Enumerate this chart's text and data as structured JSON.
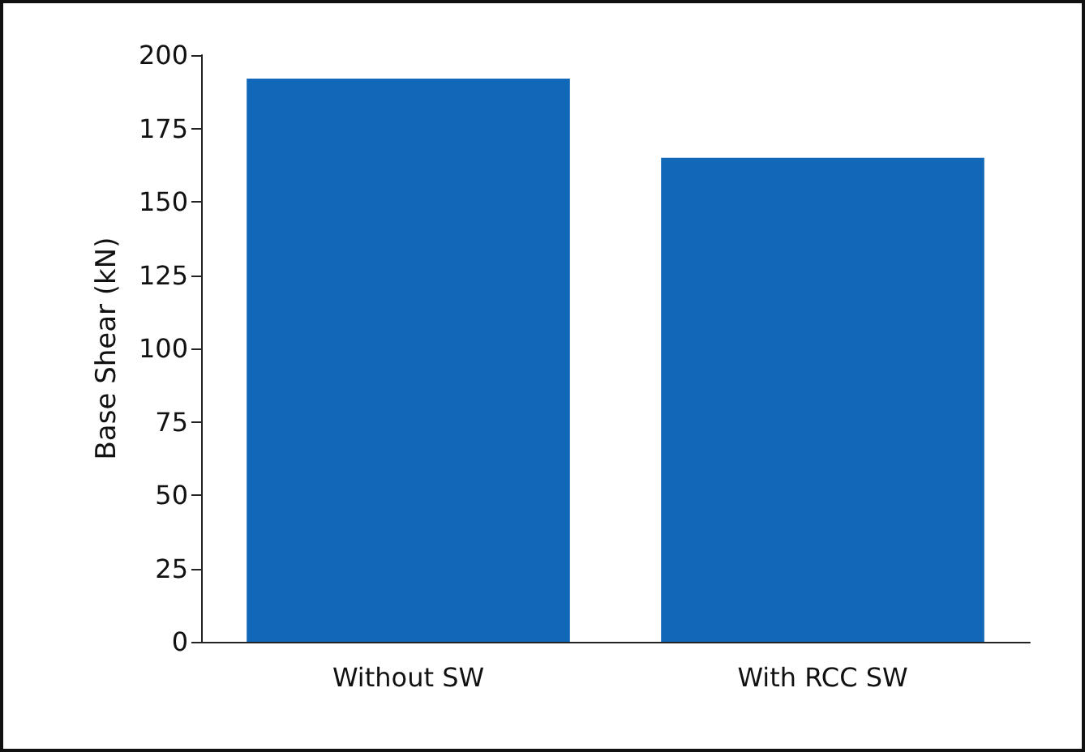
{
  "chart_data": {
    "type": "bar",
    "ylabel": "Base Shear (kN)",
    "categories": [
      "Without SW",
      "With RCC SW"
    ],
    "values": [
      192,
      165
    ],
    "color": "#1167b8",
    "ylim": [
      0,
      200
    ],
    "yticks": [
      0,
      25,
      50,
      75,
      100,
      125,
      150,
      175,
      200
    ],
    "grid": false
  }
}
